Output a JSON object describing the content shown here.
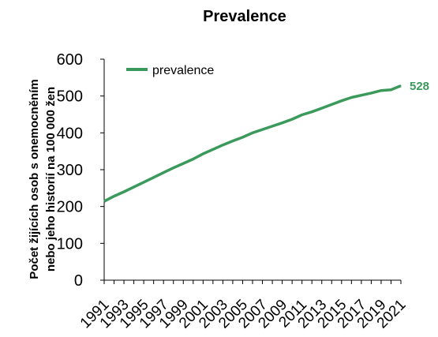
{
  "chart_data": {
    "type": "line",
    "title": "Prevalence",
    "ylabel_line1": "Počet žijících osob s onemocněním",
    "ylabel_line2": "nebo jeho historií na 100 000 žen",
    "xlabel": "",
    "ylim": [
      0,
      600
    ],
    "yticks": [
      0,
      100,
      200,
      300,
      400,
      500,
      600
    ],
    "x": [
      1991,
      1992,
      1993,
      1994,
      1995,
      1996,
      1997,
      1998,
      1999,
      2000,
      2001,
      2002,
      2003,
      2004,
      2005,
      2006,
      2007,
      2008,
      2009,
      2010,
      2011,
      2012,
      2013,
      2014,
      2015,
      2016,
      2017,
      2018,
      2019,
      2020,
      2021
    ],
    "x_tick_labels": [
      "1991",
      "1993",
      "1995",
      "1997",
      "1999",
      "2001",
      "2003",
      "2005",
      "2007",
      "2009",
      "2011",
      "2013",
      "2015",
      "2017",
      "2019",
      "2021"
    ],
    "series": [
      {
        "name": "prevalence",
        "color": "#3a9a5b",
        "values": [
          214,
          228,
          240,
          253,
          266,
          279,
          292,
          305,
          317,
          329,
          343,
          355,
          367,
          378,
          388,
          400,
          409,
          418,
          427,
          437,
          449,
          457,
          467,
          477,
          487,
          496,
          502,
          508,
          515,
          517,
          528
        ]
      }
    ],
    "end_label": "528",
    "legend_position": "top-left",
    "grid": false
  }
}
